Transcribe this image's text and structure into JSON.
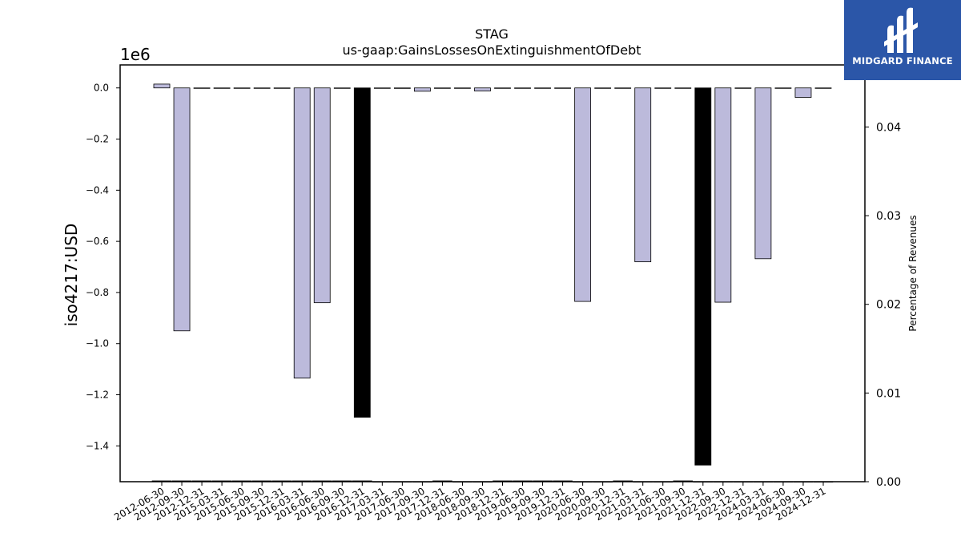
{
  "chart_data": {
    "type": "bar",
    "title": "STAG",
    "subtitle": "us-gaap:GainsLossesOnExtinguishmentOfDebt",
    "ylabel": "iso4217:USD",
    "y_offset_label": "1e6",
    "y2label": "Percentage of Revenues",
    "ylim": [
      -1.54,
      0.09
    ],
    "y2lim": [
      0.0,
      0.047
    ],
    "yticks": [
      "0.0",
      "−0.2",
      "−0.4",
      "−0.6",
      "−0.8",
      "−1.0",
      "−1.2",
      "−1.4"
    ],
    "y2ticks": [
      "0.00",
      "0.01",
      "0.02",
      "0.03",
      "0.04"
    ],
    "categories": [
      "2012-06-30",
      "2012-09-30",
      "2012-12-31",
      "2015-03-31",
      "2015-06-30",
      "2015-09-30",
      "2015-12-31",
      "2016-03-31",
      "2016-06-30",
      "2016-09-30",
      "2016-12-31",
      "2017-03-31",
      "2017-06-30",
      "2017-09-30",
      "2017-12-31",
      "2018-06-30",
      "2018-09-30",
      "2018-12-31",
      "2019-06-30",
      "2019-09-30",
      "2019-12-31",
      "2020-06-30",
      "2020-09-30",
      "2020-12-31",
      "2021-03-31",
      "2021-06-30",
      "2021-09-30",
      "2021-12-31",
      "2022-09-30",
      "2022-12-31",
      "2024-03-31",
      "2024-06-30",
      "2024-09-30",
      "2024-12-31"
    ],
    "series": [
      {
        "values": [
          0.015,
          -0.95,
          0,
          0,
          0,
          0,
          0,
          -1.135,
          -0.84,
          0,
          -1.288,
          0,
          -0.002,
          -0.013,
          0,
          0,
          -0.012,
          0,
          0,
          0,
          0,
          -0.835,
          0,
          0,
          -0.68,
          0,
          0,
          -1.475,
          -0.838,
          0,
          -0.668,
          0,
          -0.037,
          0
        ],
        "highlight": [
          false,
          false,
          false,
          false,
          false,
          false,
          false,
          false,
          false,
          false,
          true,
          false,
          false,
          false,
          false,
          false,
          false,
          false,
          false,
          false,
          false,
          false,
          false,
          false,
          false,
          false,
          false,
          true,
          false,
          false,
          false,
          false,
          false,
          false
        ]
      },
      {
        "name_axis": "Percentage of Revenues",
        "values": [
          0.0001,
          0.0001,
          0.0001,
          0.0001,
          0.0001,
          0.0001,
          0.0001,
          0.0001,
          0.0001,
          0.0001,
          0.0001,
          0,
          0,
          0,
          0.0001,
          0,
          0,
          0.0001,
          0.0001,
          0.0001,
          0.0001,
          0,
          0,
          0.0001,
          0,
          0,
          0.0001,
          0,
          0,
          0,
          0,
          0,
          0,
          0
        ]
      }
    ],
    "colors": {
      "bar": "#bcbadb",
      "highlight": "#000000",
      "edge": "#000000"
    },
    "grid": false
  },
  "logo": {
    "text": "MIDGARD FINANCE",
    "background": "#2b56a8"
  }
}
